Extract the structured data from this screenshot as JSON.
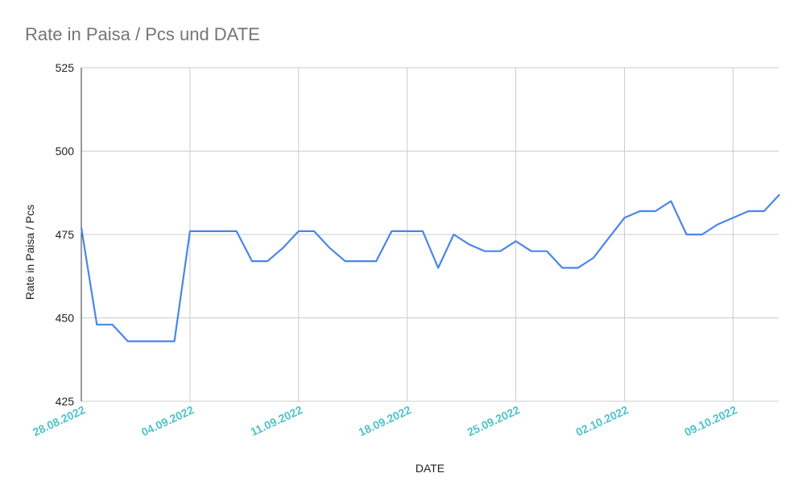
{
  "chart_data": {
    "type": "line",
    "title": "Rate in Paisa / Pcs und DATE",
    "xlabel": "DATE",
    "ylabel": "Rate in Paisa / Pcs",
    "ylim": [
      425,
      525
    ],
    "yticks": [
      "525",
      "500",
      "475",
      "450",
      "425"
    ],
    "xticks": [
      "28.08.2022",
      "04.09.2022",
      "11.09.2022",
      "18.09.2022",
      "25.09.2022",
      "02.10.2022",
      "09.10.2022"
    ],
    "x_start": "28.08.2022",
    "grid": true,
    "series": [
      {
        "values": [
          477,
          448,
          448,
          443,
          443,
          443,
          443,
          476,
          476,
          476,
          476,
          467,
          467,
          471,
          476,
          476,
          471,
          467,
          467,
          467,
          476,
          476,
          476,
          465,
          475,
          472,
          470,
          470,
          473,
          470,
          470,
          465,
          465,
          468,
          474,
          480,
          482,
          482,
          485,
          475,
          475,
          478,
          480,
          482,
          482,
          487
        ]
      }
    ],
    "colors": {
      "line": "#4a86e8",
      "grid": "#cccccc",
      "xtick": "#4fc3c8",
      "title": "#757575"
    }
  }
}
